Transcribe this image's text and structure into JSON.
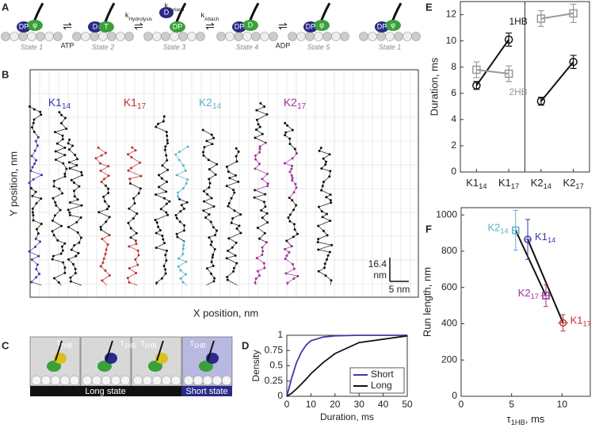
{
  "panel_labels": [
    "A",
    "B",
    "C",
    "D",
    "E",
    "F"
  ],
  "panel_a": {
    "states": [
      "State 1",
      "State 2",
      "State 3",
      "State 4",
      "State 5",
      "State 1"
    ],
    "transitions": [
      "ATP",
      {
        "text": "k",
        "sub": "Hydrolysis"
      },
      {
        "text": "k",
        "sub": "Detach"
      },
      {
        "text": "k",
        "sub": "Attach"
      },
      "ADP"
    ],
    "head_labels": [
      [
        "DP",
        "φ"
      ],
      [
        "D",
        "T"
      ],
      [
        "D",
        "DP"
      ],
      [
        "DP",
        "D"
      ],
      [
        "DP",
        "φ"
      ],
      [
        "DP",
        "φ"
      ]
    ]
  },
  "panel_b": {
    "xlabel": "X position, nm",
    "ylabel": "Y position, nm",
    "motors": [
      {
        "text": "K1",
        "sub": "14"
      },
      {
        "text": "K1",
        "sub": "17"
      },
      {
        "text": "K2",
        "sub": "14"
      },
      {
        "text": "K2",
        "sub": "17"
      }
    ],
    "scale_y": [
      "16.4",
      "nm"
    ],
    "scale_x": "5 nm"
  },
  "panel_c": {
    "taus": [
      {
        "text": "τ",
        "sub": "2HB"
      },
      {
        "text": "τ",
        "sub": "1HB"
      },
      {
        "text": "τ",
        "sub": "2HB"
      },
      {
        "text": "τ",
        "sub": "1HB"
      }
    ],
    "long": "Long state",
    "short": "Short state"
  },
  "chart_data": [
    {
      "type": "line",
      "xlabel": "Duration, ms",
      "ylabel": "Density",
      "x": [
        0,
        2,
        4,
        6,
        8,
        10,
        15,
        20,
        30,
        50
      ],
      "series": [
        {
          "name": "Short",
          "color": "#3a3aa8",
          "values": [
            0,
            0.3,
            0.55,
            0.72,
            0.84,
            0.91,
            0.97,
            0.99,
            1,
            1
          ]
        },
        {
          "name": "Long",
          "color": "#111111",
          "values": [
            0,
            0.05,
            0.12,
            0.2,
            0.28,
            0.37,
            0.55,
            0.7,
            0.88,
            0.99
          ]
        }
      ],
      "xlim": [
        0,
        50
      ],
      "xticks": [
        0,
        10,
        20,
        30,
        40,
        50
      ],
      "ylim": [
        0,
        1
      ],
      "yticks": [
        0,
        0.25,
        0.5,
        0.75,
        1
      ],
      "legend": "lower right"
    },
    {
      "type": "errorbar",
      "ylabel": "Duration, ms",
      "categories": [
        {
          "text": "K1",
          "sub": "14"
        },
        {
          "text": "K1",
          "sub": "17"
        },
        {
          "text": "K2",
          "sub": "14"
        },
        {
          "text": "K2",
          "sub": "17"
        }
      ],
      "series": [
        {
          "name": "1HB",
          "color": "#111111",
          "marker": "circle",
          "values": [
            6.6,
            10.1,
            5.4,
            8.4
          ],
          "errors": [
            0.3,
            0.5,
            0.3,
            0.5
          ]
        },
        {
          "name": "2HB",
          "color": "#999999",
          "marker": "square",
          "values": [
            7.8,
            7.5,
            11.7,
            12.1
          ],
          "errors": [
            0.6,
            0.6,
            0.6,
            0.7
          ]
        }
      ],
      "ylim": [
        0,
        13
      ],
      "yticks": [
        0,
        2,
        4,
        6,
        8,
        10,
        12
      ]
    },
    {
      "type": "scatter",
      "xlabel": {
        "text": "τ",
        "sub": "1HB",
        "rest": ", ms"
      },
      "ylabel": "Run length, nm",
      "series": [
        {
          "name": "K2",
          "name_sub": "14",
          "color": "#5ab4c8",
          "marker": "square",
          "x": [
            5.4
          ],
          "values": [
            915
          ],
          "xerr": [
            0.3
          ],
          "yerr": [
            110
          ]
        },
        {
          "name": "K1",
          "name_sub": "14",
          "color": "#3a3aa8",
          "marker": "circle",
          "x": [
            6.6
          ],
          "values": [
            865
          ],
          "xerr": [
            0.3
          ],
          "yerr": [
            110
          ]
        },
        {
          "name": "K2",
          "name_sub": "17",
          "color": "#a0309a",
          "marker": "square",
          "x": [
            8.4
          ],
          "values": [
            555
          ],
          "xerr": [
            0.5
          ],
          "yerr": [
            60
          ]
        },
        {
          "name": "K1",
          "name_sub": "17",
          "color": "#c03030",
          "marker": "circle",
          "x": [
            10.1
          ],
          "values": [
            405
          ],
          "xerr": [
            0.5
          ],
          "yerr": [
            45
          ]
        }
      ],
      "xlim": [
        0,
        12.8
      ],
      "xticks": [
        0,
        5,
        10
      ],
      "ylim": [
        0,
        1040
      ],
      "yticks": [
        0,
        200,
        400,
        600,
        800,
        1000
      ]
    }
  ]
}
